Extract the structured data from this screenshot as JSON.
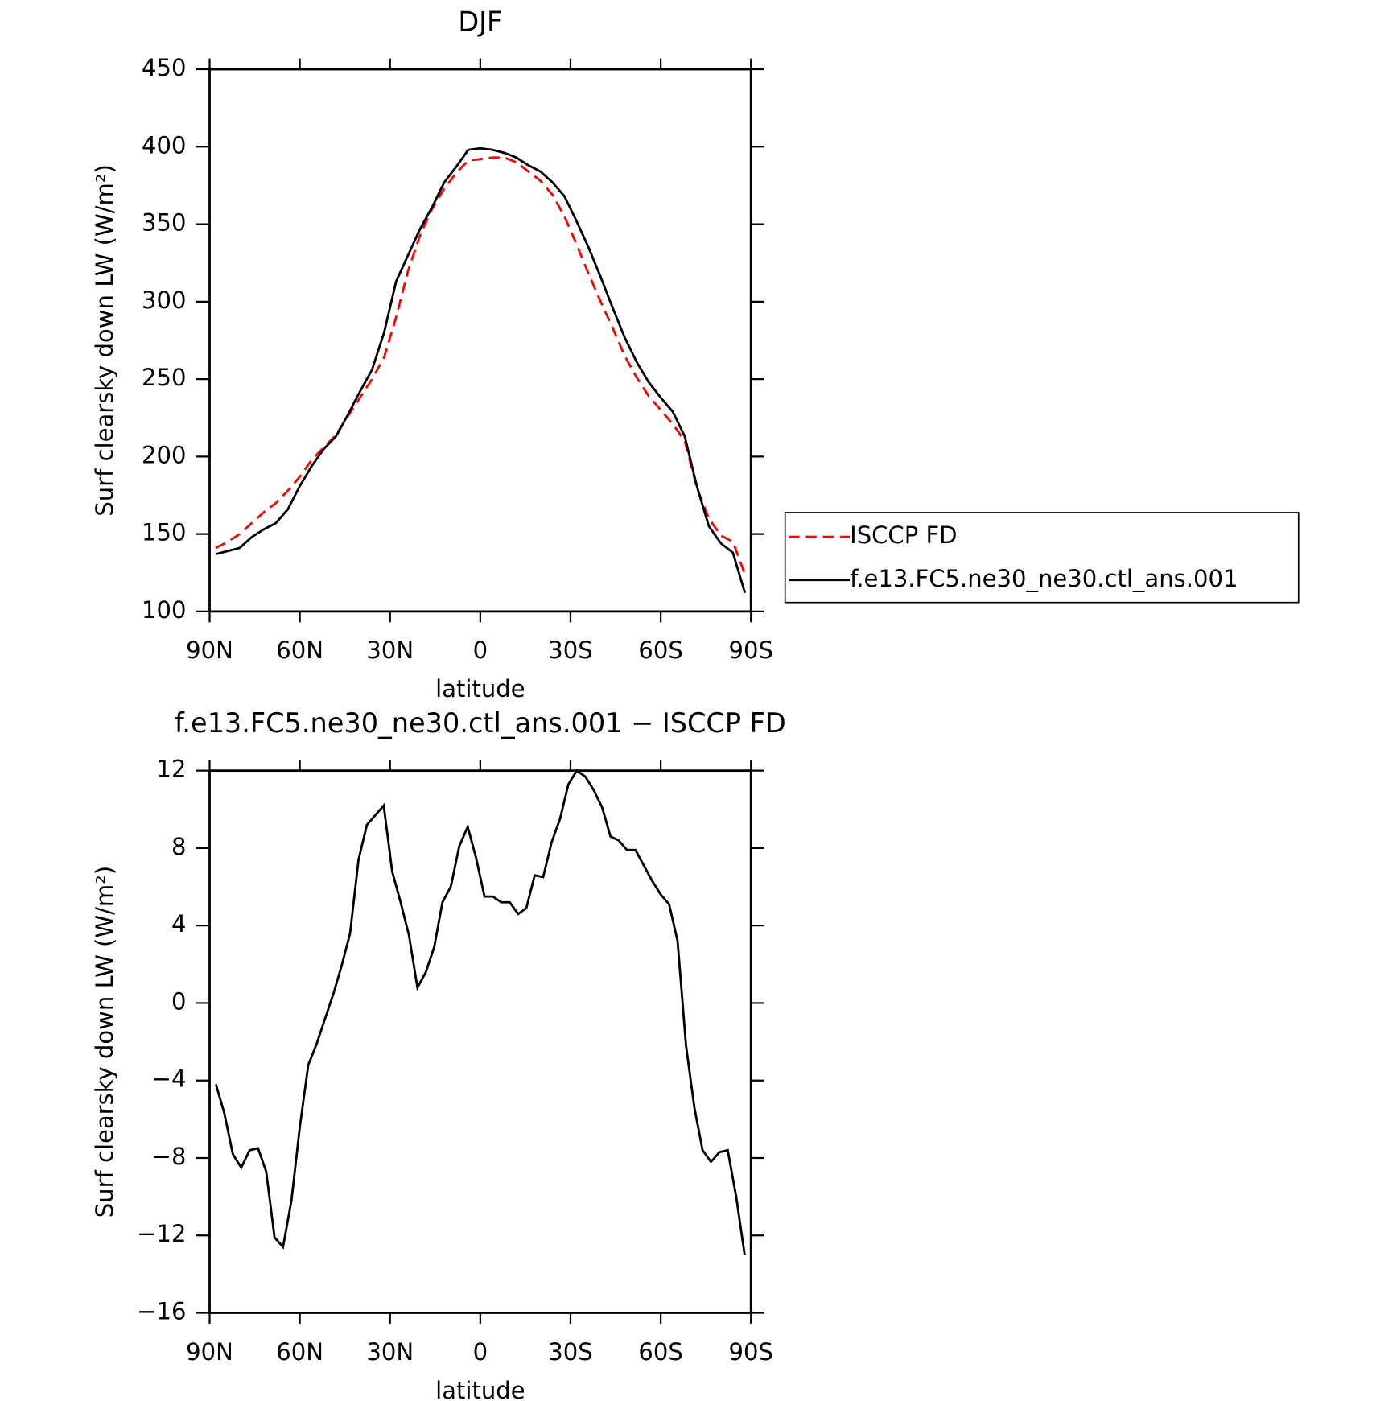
{
  "chart_data": [
    {
      "type": "line",
      "title": "DJF",
      "xlabel": "latitude",
      "ylabel": "Surf clearsky down LW (W/m²)",
      "x": [
        88,
        84,
        80,
        76,
        72,
        68,
        64,
        60,
        56,
        52,
        48,
        44,
        40,
        36,
        32,
        28,
        24,
        20,
        16,
        12,
        8,
        4,
        0,
        -4,
        -8,
        -12,
        -16,
        -20,
        -24,
        -28,
        -32,
        -36,
        -40,
        -44,
        -48,
        -52,
        -56,
        -60,
        -64,
        -68,
        -72,
        -76,
        -80,
        -84,
        -88
      ],
      "series": [
        {
          "name": "ISCCP FD",
          "color": "#ff0000",
          "style": "dashed",
          "values": [
            141,
            145,
            150,
            157,
            164,
            170,
            178,
            187,
            198,
            206,
            214,
            226,
            238,
            250,
            264,
            290,
            320,
            343,
            360,
            373,
            383,
            391,
            392,
            393,
            393,
            390,
            384,
            378,
            369,
            355,
            337,
            318,
            300,
            283,
            265,
            251,
            239,
            230,
            221,
            210,
            180,
            160,
            149,
            145,
            124
          ]
        },
        {
          "name": "f.e13.FC5.ne30_ne30.ctl_ans.001",
          "color": "#000000",
          "style": "solid",
          "values": [
            137,
            139,
            141,
            148,
            153,
            157,
            166,
            181,
            194,
            205,
            213,
            227,
            242,
            256,
            280,
            313,
            330,
            347,
            361,
            377,
            387,
            398,
            399,
            398,
            396,
            393,
            388,
            384,
            377,
            368,
            352,
            335,
            316,
            296,
            277,
            261,
            248,
            238,
            229,
            213,
            181,
            155,
            144,
            138,
            112
          ]
        }
      ],
      "xlim": [
        90,
        -90
      ],
      "xticks": [
        {
          "value": 90,
          "label": "90N"
        },
        {
          "value": 60,
          "label": "60N"
        },
        {
          "value": 30,
          "label": "30N"
        },
        0,
        {
          "value": -30,
          "label": "30S"
        },
        {
          "value": -60,
          "label": "60S"
        },
        {
          "value": -90,
          "label": "90S"
        }
      ],
      "ylim": [
        100,
        450
      ],
      "yticks": [
        100,
        150,
        200,
        250,
        300,
        350,
        400,
        450
      ],
      "legend": "right"
    },
    {
      "type": "line",
      "title": "f.e13.FC5.ne30_ne30.ctl_ans.001 − ISCCP FD",
      "xlabel": "latitude",
      "ylabel": "Surf clearsky down LW (W/m²)",
      "x": [
        87.9,
        85.1,
        82.3,
        79.5,
        76.7,
        73.9,
        71.2,
        68.4,
        65.6,
        62.8,
        60.0,
        57.2,
        54.4,
        51.6,
        48.8,
        46.0,
        43.3,
        40.5,
        37.7,
        34.9,
        32.1,
        29.3,
        26.5,
        23.7,
        20.9,
        18.1,
        15.3,
        12.6,
        9.8,
        7.0,
        4.2,
        1.4,
        -1.4,
        -4.2,
        -7.0,
        -9.8,
        -12.6,
        -15.3,
        -18.1,
        -20.9,
        -23.7,
        -26.5,
        -29.3,
        -32.1,
        -34.9,
        -37.7,
        -40.5,
        -43.3,
        -46.0,
        -48.8,
        -51.6,
        -54.4,
        -57.2,
        -60.0,
        -62.8,
        -65.6,
        -68.4,
        -71.2,
        -73.9,
        -76.7,
        -79.5,
        -82.3,
        -85.1,
        -87.9
      ],
      "series": [
        {
          "color": "#000000",
          "style": "solid",
          "values": [
            -4.2,
            -5.7,
            -7.8,
            -8.5,
            -7.6,
            -7.5,
            -8.7,
            -12.1,
            -12.6,
            -10.2,
            -6.4,
            -3.2,
            -2.1,
            -0.8,
            0.5,
            2.0,
            3.6,
            7.4,
            9.2,
            9.7,
            10.2,
            6.8,
            5.2,
            3.5,
            0.8,
            1.6,
            2.9,
            5.2,
            6.0,
            8.1,
            9.1,
            7.5,
            5.5,
            5.5,
            5.2,
            5.2,
            4.6,
            4.9,
            6.6,
            6.5,
            8.3,
            9.5,
            11.3,
            12.0,
            11.7,
            11.0,
            10.1,
            8.6,
            8.4,
            7.9,
            7.9,
            7.1,
            6.3,
            5.6,
            5.1,
            3.2,
            -2.2,
            -5.4,
            -7.6,
            -8.2,
            -7.7,
            -7.6,
            -10.0,
            -13.0
          ]
        }
      ],
      "xlim": [
        90,
        -90
      ],
      "xticks": [
        {
          "value": 90,
          "label": "90N"
        },
        {
          "value": 60,
          "label": "60N"
        },
        {
          "value": 30,
          "label": "30N"
        },
        0,
        {
          "value": -30,
          "label": "30S"
        },
        {
          "value": -60,
          "label": "60S"
        },
        {
          "value": -90,
          "label": "90S"
        }
      ],
      "ylim": [
        -16,
        12
      ],
      "yticks": [
        {
          "value": -16,
          "label": "−16"
        },
        {
          "value": -12,
          "label": "−12"
        },
        {
          "value": -8,
          "label": "−8"
        },
        {
          "value": -4,
          "label": "−4"
        },
        0,
        4,
        8,
        12
      ]
    }
  ]
}
